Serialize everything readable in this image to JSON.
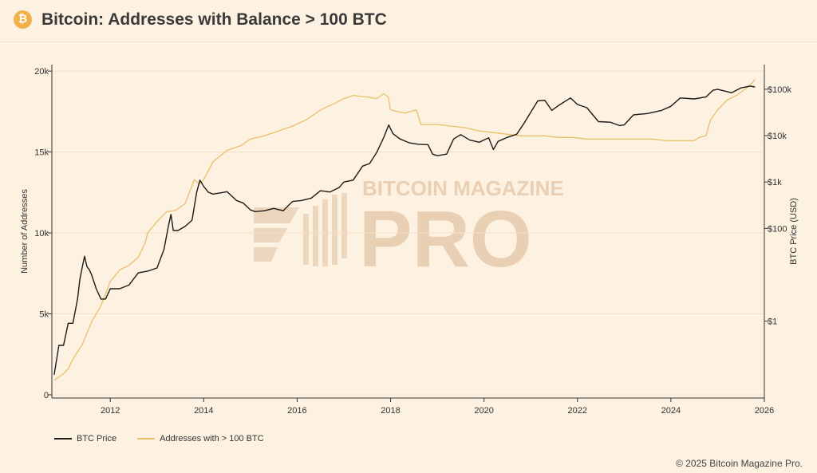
{
  "header": {
    "logo_glyph": "₿",
    "title": "Bitcoin: Addresses with Balance > 100 BTC"
  },
  "watermark": {
    "line1": "BITCOIN MAGAZINE",
    "line2": "PRO"
  },
  "footer": {
    "copyright": "© 2025 Bitcoin Magazine Pro."
  },
  "colors": {
    "price": "#1e1a17",
    "addresses": "#e8c068",
    "grid": "#f3e0c8",
    "watermark": "#e9cfb3"
  },
  "chart_data": {
    "type": "line",
    "title": "Bitcoin: Addresses with Balance > 100 BTC",
    "xlabel": "",
    "ylabel": "Number of Addresses",
    "y2label": "BTC Price (USD)",
    "xlim": [
      2010.75,
      2026.0
    ],
    "ylim": [
      -200,
      20400
    ],
    "y2_scale": "log",
    "y2lim": [
      0.022,
      340000
    ],
    "grid": true,
    "legend_position": "bottom-left",
    "x_ticks": [
      "2012",
      "2014",
      "2016",
      "2018",
      "2020",
      "2022",
      "2024",
      "2026"
    ],
    "x_tick_values": [
      2012,
      2014,
      2016,
      2018,
      2020,
      2022,
      2024,
      2026
    ],
    "y_ticks": [
      "0",
      "5k",
      "10k",
      "15k",
      "20k"
    ],
    "y_tick_values": [
      0,
      5000,
      10000,
      15000,
      20000
    ],
    "y2_ticks": [
      "$1",
      "$100",
      "$1k",
      "$10k",
      "$100k"
    ],
    "y2_tick_values": [
      1,
      100,
      1000,
      10000,
      100000
    ],
    "series": [
      {
        "name": "BTC Price",
        "axis": "right",
        "x": [
          2010.8,
          2010.9,
          2011.0,
          2011.1,
          2011.2,
          2011.3,
          2011.35,
          2011.42,
          2011.45,
          2011.5,
          2011.55,
          2011.6,
          2011.7,
          2011.8,
          2011.9,
          2012.0,
          2012.2,
          2012.4,
          2012.6,
          2012.8,
          2013.0,
          2013.15,
          2013.25,
          2013.3,
          2013.35,
          2013.45,
          2013.6,
          2013.75,
          2013.85,
          2013.92,
          2014.0,
          2014.1,
          2014.2,
          2014.35,
          2014.5,
          2014.7,
          2014.85,
          2015.0,
          2015.1,
          2015.3,
          2015.5,
          2015.7,
          2015.9,
          2016.1,
          2016.3,
          2016.5,
          2016.7,
          2016.9,
          2017.0,
          2017.2,
          2017.4,
          2017.55,
          2017.7,
          2017.85,
          2017.96,
          2018.05,
          2018.2,
          2018.4,
          2018.6,
          2018.8,
          2018.9,
          2019.0,
          2019.2,
          2019.35,
          2019.5,
          2019.7,
          2019.9,
          2020.1,
          2020.2,
          2020.3,
          2020.5,
          2020.7,
          2020.85,
          2021.0,
          2021.15,
          2021.3,
          2021.45,
          2021.6,
          2021.85,
          2022.0,
          2022.2,
          2022.45,
          2022.7,
          2022.9,
          2023.0,
          2023.2,
          2023.5,
          2023.8,
          2024.0,
          2024.2,
          2024.5,
          2024.75,
          2024.9,
          2025.0,
          2025.3,
          2025.5,
          2025.7,
          2025.8
        ],
        "y": [
          0.07,
          0.3,
          0.3,
          0.9,
          0.9,
          3,
          8,
          18,
          25,
          15,
          13,
          10,
          5,
          3,
          3,
          5,
          5,
          6,
          11,
          12,
          14,
          35,
          120,
          200,
          90,
          90,
          110,
          150,
          600,
          1100,
          800,
          600,
          550,
          580,
          620,
          400,
          350,
          250,
          230,
          240,
          270,
          240,
          380,
          400,
          450,
          650,
          610,
          760,
          1000,
          1100,
          2200,
          2500,
          4300,
          9000,
          17000,
          11000,
          8500,
          7000,
          6500,
          6400,
          4000,
          3700,
          4000,
          8500,
          10500,
          8000,
          7200,
          9000,
          5000,
          7500,
          9200,
          10700,
          18000,
          32000,
          56000,
          58000,
          35000,
          45000,
          65000,
          47000,
          40000,
          20000,
          19500,
          16500,
          17000,
          28000,
          30000,
          35000,
          43000,
          65000,
          62000,
          68000,
          95000,
          100000,
          84000,
          107000,
          117000,
          112000
        ]
      },
      {
        "name": "Addresses with > 100 BTC",
        "axis": "left",
        "x": [
          2010.8,
          2010.9,
          2011.0,
          2011.1,
          2011.2,
          2011.4,
          2011.6,
          2011.8,
          2012.0,
          2012.2,
          2012.4,
          2012.6,
          2012.75,
          2012.8,
          2013.0,
          2013.2,
          2013.4,
          2013.6,
          2013.8,
          2013.9,
          2014.0,
          2014.2,
          2014.5,
          2014.8,
          2015.0,
          2015.3,
          2015.6,
          2015.9,
          2016.2,
          2016.5,
          2016.8,
          2017.0,
          2017.2,
          2017.5,
          2017.7,
          2017.85,
          2017.95,
          2018.0,
          2018.3,
          2018.55,
          2018.65,
          2019.0,
          2019.3,
          2019.6,
          2019.9,
          2020.2,
          2020.5,
          2020.8,
          2021.0,
          2021.3,
          2021.6,
          2021.9,
          2022.2,
          2022.5,
          2022.8,
          2023.0,
          2023.3,
          2023.6,
          2023.9,
          2024.2,
          2024.5,
          2024.6,
          2024.75,
          2024.85,
          2025.0,
          2025.2,
          2025.4,
          2025.6,
          2025.75,
          2025.8
        ],
        "y": [
          900,
          1100,
          1300,
          1600,
          2200,
          3100,
          4500,
          5500,
          7000,
          7700,
          8000,
          8500,
          9400,
          10000,
          10700,
          11300,
          11400,
          11800,
          13300,
          13000,
          13300,
          14400,
          15100,
          15400,
          15800,
          16000,
          16300,
          16600,
          17000,
          17600,
          18000,
          18300,
          18500,
          18400,
          18300,
          18600,
          18400,
          17600,
          17400,
          17600,
          16700,
          16700,
          16600,
          16500,
          16300,
          16200,
          16100,
          16000,
          16000,
          16000,
          15900,
          15900,
          15800,
          15800,
          15800,
          15800,
          15800,
          15800,
          15700,
          15700,
          15700,
          15900,
          16000,
          17000,
          17600,
          18200,
          18500,
          18900,
          19300,
          19500
        ]
      }
    ]
  }
}
